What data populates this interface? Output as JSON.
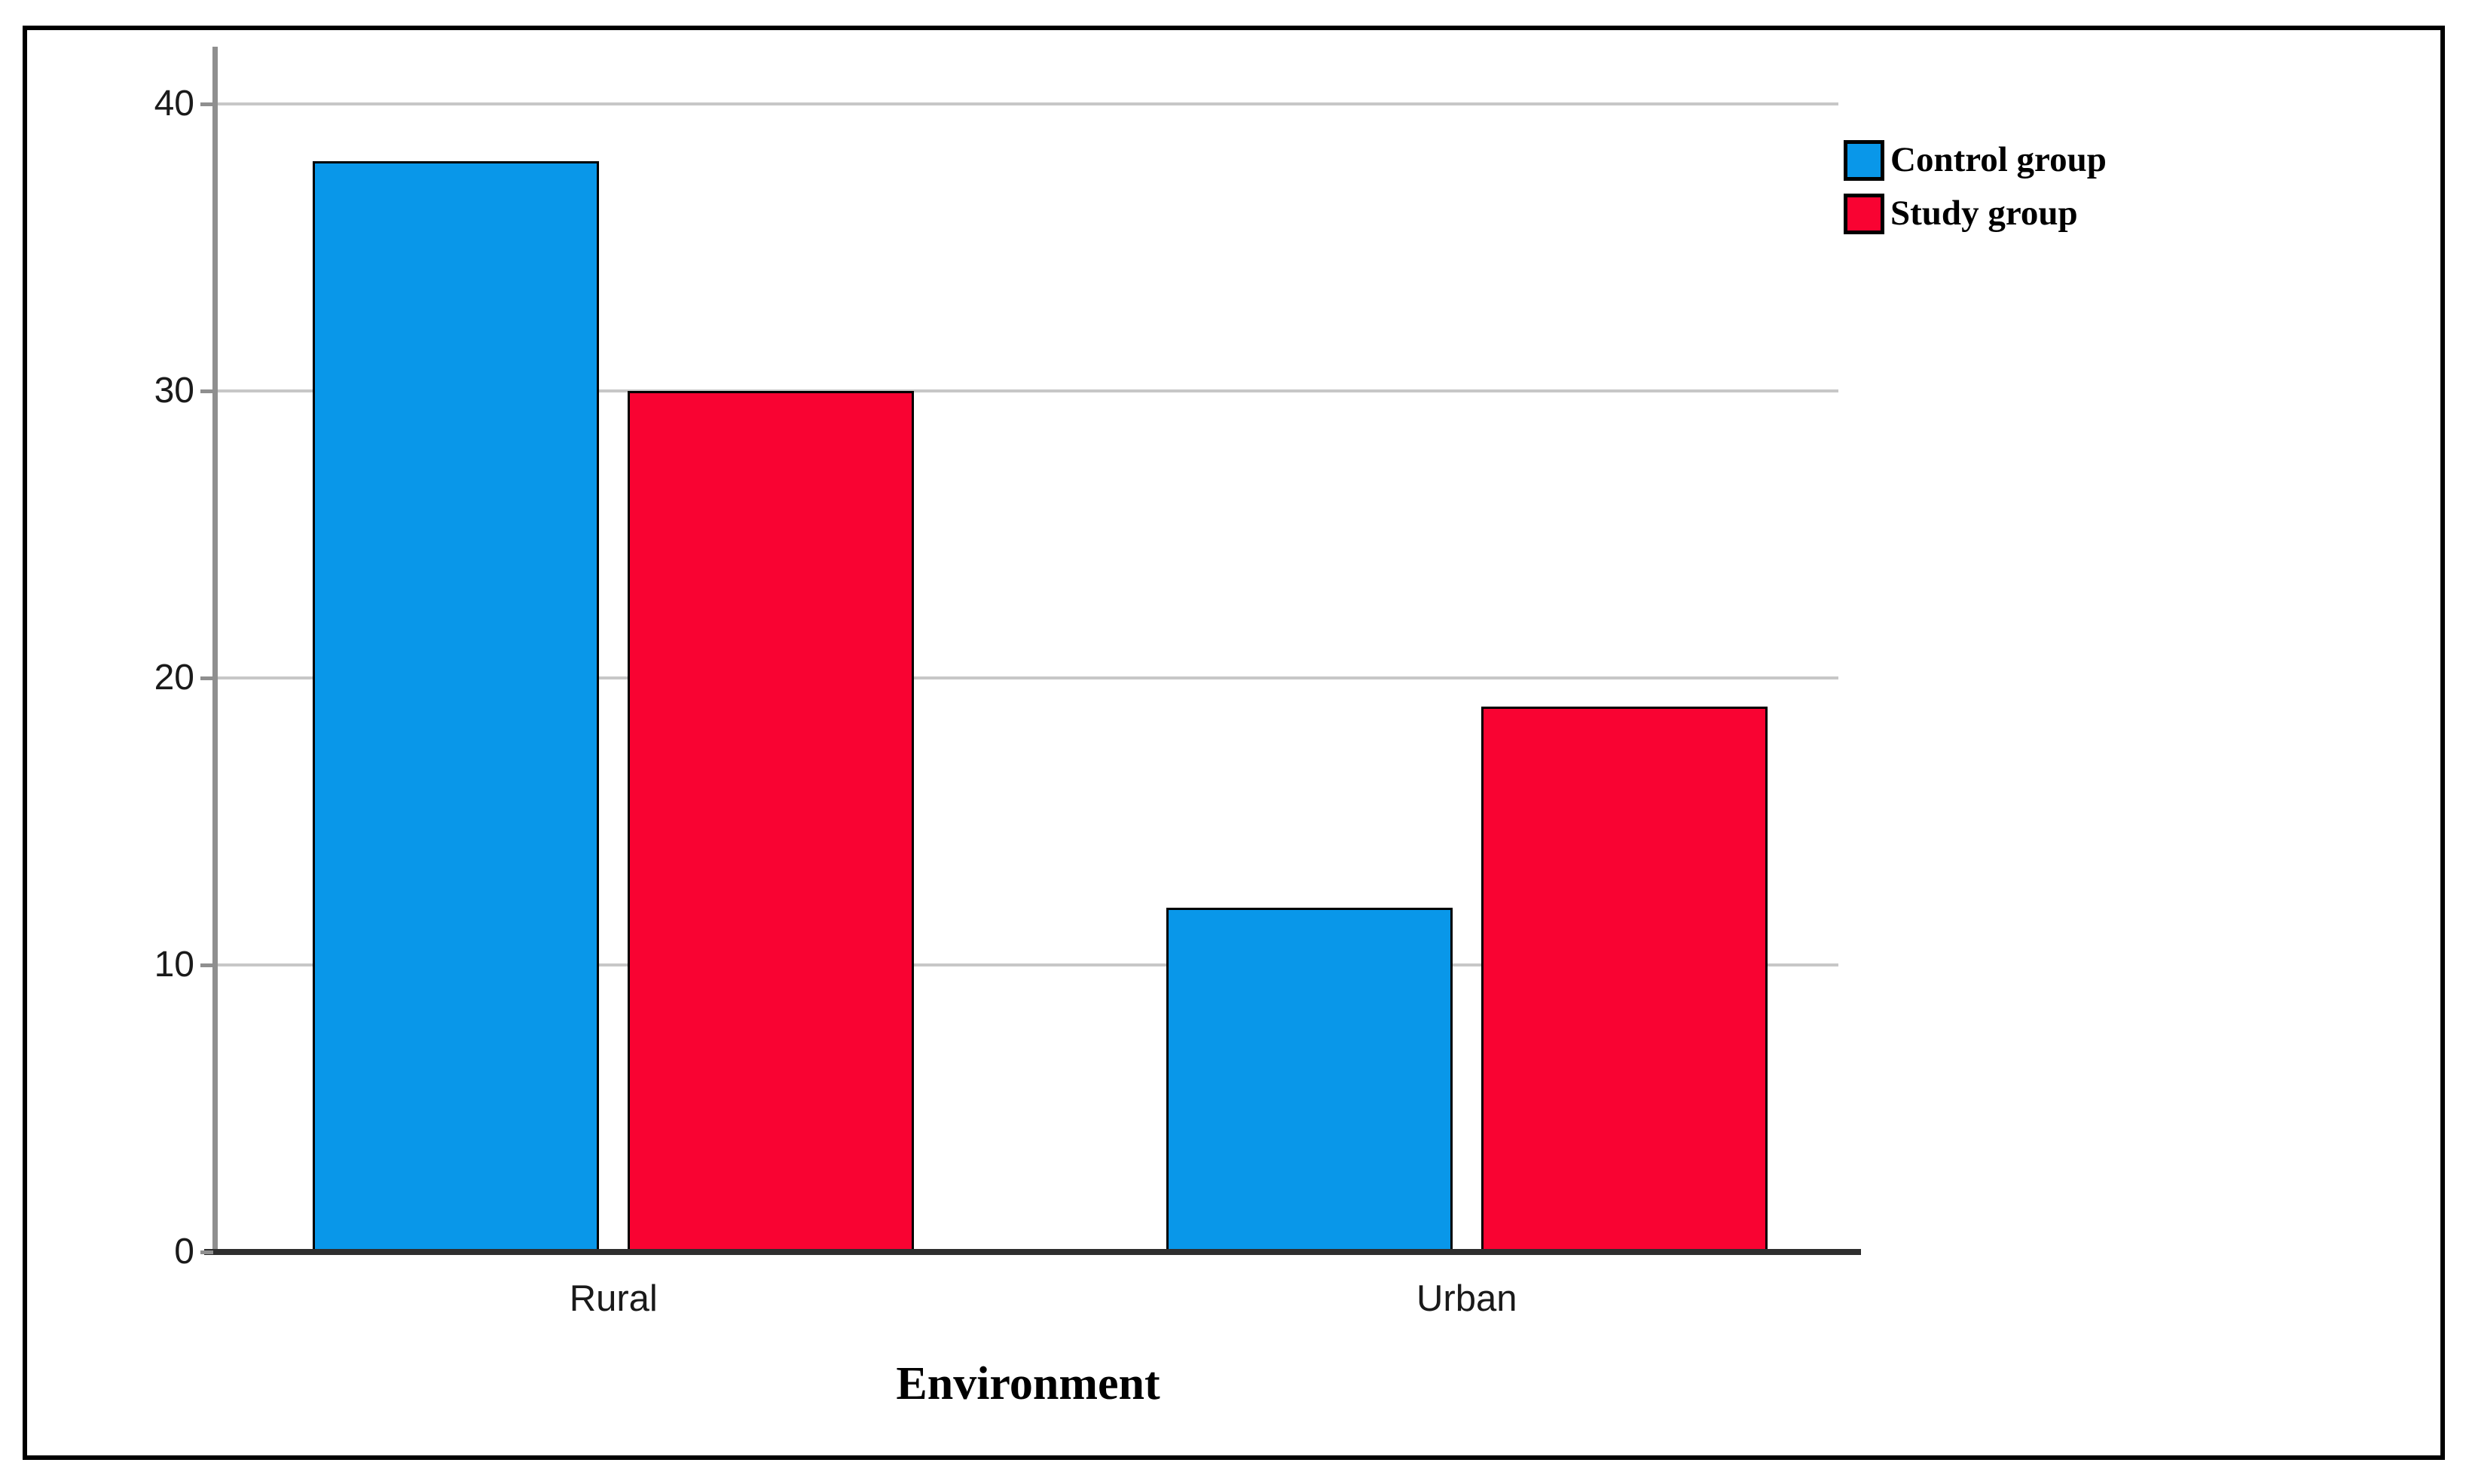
{
  "figure": {
    "background_color": "#ffffff",
    "frame_color": "#000000"
  },
  "chart_data": {
    "type": "bar",
    "title": "",
    "xlabel": "Environment",
    "ylabel": "",
    "categories": [
      "Rural",
      "Urban"
    ],
    "series": [
      {
        "name": "Control group",
        "color": "#0997e9",
        "values": [
          38,
          12
        ]
      },
      {
        "name": "Study group",
        "color": "#f90332",
        "values": [
          30,
          19
        ]
      }
    ],
    "ylim": [
      0,
      42
    ],
    "yticks": [
      0,
      10,
      20,
      30,
      40
    ],
    "grid": true,
    "legend_position": "top-right",
    "bar_border_color": "#000000",
    "axis_color": "#8f8f8f",
    "baseline_color": "#2e2e2e",
    "gridline_color": "#c7c7c7"
  }
}
